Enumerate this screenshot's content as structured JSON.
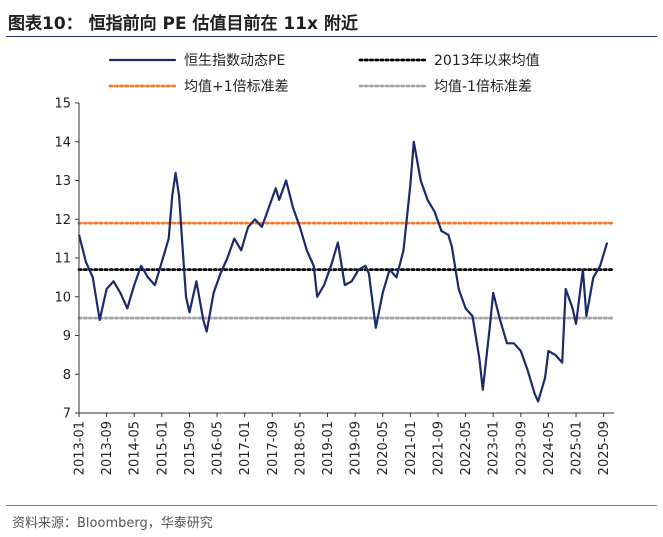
{
  "figure": {
    "title": "图表10：  恒指前向 PE 估值目前在 11x 附近",
    "source": "资料来源：Bloomberg，华泰研究"
  },
  "chart_data": {
    "type": "line",
    "title": "",
    "xlabel": "",
    "ylabel": "",
    "ylim": [
      7,
      15
    ],
    "yticks": [
      7,
      8,
      9,
      10,
      11,
      12,
      13,
      14,
      15
    ],
    "xticks": [
      "2013-01",
      "2013-09",
      "2014-05",
      "2015-01",
      "2015-09",
      "2016-05",
      "2017-01",
      "2017-09",
      "2018-05",
      "2019-01",
      "2019-09",
      "2020-05",
      "2021-01",
      "2021-09",
      "2022-05",
      "2023-01",
      "2023-09",
      "2024-05",
      "2025-01",
      "2025-09"
    ],
    "legend_position": "top",
    "series": [
      {
        "name": "恒生指数动态PE",
        "color": "#1b2a6b",
        "style": "solid",
        "x": [
          "2013-01",
          "2013-03",
          "2013-05",
          "2013-07",
          "2013-09",
          "2013-11",
          "2014-01",
          "2014-03",
          "2014-05",
          "2014-07",
          "2014-09",
          "2014-11",
          "2015-01",
          "2015-03",
          "2015-04",
          "2015-05",
          "2015-06",
          "2015-07",
          "2015-08",
          "2015-09",
          "2015-11",
          "2016-01",
          "2016-02",
          "2016-04",
          "2016-06",
          "2016-08",
          "2016-10",
          "2016-12",
          "2017-02",
          "2017-04",
          "2017-06",
          "2017-08",
          "2017-10",
          "2017-11",
          "2018-01",
          "2018-03",
          "2018-05",
          "2018-07",
          "2018-09",
          "2018-10",
          "2018-12",
          "2019-02",
          "2019-04",
          "2019-06",
          "2019-08",
          "2019-10",
          "2019-12",
          "2020-01",
          "2020-03",
          "2020-05",
          "2020-07",
          "2020-09",
          "2020-11",
          "2021-01",
          "2021-02",
          "2021-04",
          "2021-06",
          "2021-08",
          "2021-10",
          "2021-12",
          "2022-01",
          "2022-03",
          "2022-05",
          "2022-07",
          "2022-09",
          "2022-10",
          "2022-12",
          "2023-01",
          "2023-03",
          "2023-05",
          "2023-07",
          "2023-09",
          "2023-11",
          "2024-01",
          "2024-02",
          "2024-04",
          "2024-05",
          "2024-07",
          "2024-09",
          "2024-10",
          "2024-12",
          "2025-01",
          "2025-03",
          "2025-04",
          "2025-06",
          "2025-08",
          "2025-10"
        ],
        "values": [
          11.6,
          10.9,
          10.5,
          9.4,
          10.2,
          10.4,
          10.1,
          9.7,
          10.3,
          10.8,
          10.5,
          10.3,
          10.9,
          11.5,
          12.6,
          13.2,
          12.6,
          11.3,
          10.0,
          9.6,
          10.4,
          9.4,
          9.1,
          10.1,
          10.6,
          11.0,
          11.5,
          11.2,
          11.8,
          12.0,
          11.8,
          12.3,
          12.8,
          12.5,
          13.0,
          12.3,
          11.8,
          11.2,
          10.8,
          10.0,
          10.3,
          10.8,
          11.4,
          10.3,
          10.4,
          10.7,
          10.8,
          10.6,
          9.2,
          10.1,
          10.7,
          10.5,
          11.2,
          12.9,
          14.0,
          13.0,
          12.5,
          12.2,
          11.7,
          11.6,
          11.3,
          10.2,
          9.7,
          9.5,
          8.4,
          7.6,
          9.2,
          10.1,
          9.4,
          8.8,
          8.8,
          8.6,
          8.1,
          7.5,
          7.3,
          7.9,
          8.6,
          8.5,
          8.3,
          10.2,
          9.7,
          9.3,
          10.7,
          9.5,
          10.5,
          10.8,
          11.4
        ]
      },
      {
        "name": "2013年以来均值",
        "color": "#000000",
        "style": "dotted",
        "value": 10.7
      },
      {
        "name": "均值+1倍标准差",
        "color": "#f07b2b",
        "style": "dotted",
        "value": 11.9
      },
      {
        "name": "均值-1倍标准差",
        "color": "#a6a6a6",
        "style": "dotted",
        "value": 9.45
      }
    ]
  }
}
